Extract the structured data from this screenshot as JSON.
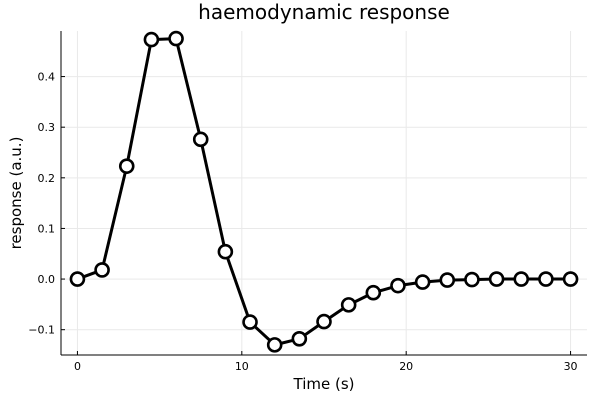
{
  "chart_data": {
    "type": "line",
    "title": "haemodynamic response",
    "xlabel": "Time (s)",
    "ylabel": "response (a.u.)",
    "xlim": [
      -1,
      31
    ],
    "ylim": [
      -0.15,
      0.49
    ],
    "xticks": [
      0,
      10,
      20,
      30
    ],
    "xtick_labels": [
      "0",
      "10",
      "20",
      "30"
    ],
    "yticks": [
      -0.1,
      0.0,
      0.1,
      0.2,
      0.3,
      0.4
    ],
    "ytick_labels": [
      "−0.1",
      "0.0",
      "0.1",
      "0.2",
      "0.3",
      "0.4"
    ],
    "grid": true,
    "legend": false,
    "series": [
      {
        "color": "#000000",
        "marker": "circle",
        "marker_fill": "#ffffff",
        "x": [
          0,
          1.5,
          3,
          4.5,
          6,
          7.5,
          9,
          10.5,
          12,
          13.5,
          15,
          16.5,
          18,
          19.5,
          21,
          22.5,
          24,
          25.5,
          27,
          28.5,
          30
        ],
        "y": [
          0.0,
          0.018,
          0.223,
          0.473,
          0.475,
          0.276,
          0.054,
          -0.085,
          -0.13,
          -0.118,
          -0.084,
          -0.051,
          -0.027,
          -0.013,
          -0.006,
          -0.002,
          -0.001,
          0.0,
          0.0,
          0.0,
          0.0
        ]
      }
    ]
  }
}
